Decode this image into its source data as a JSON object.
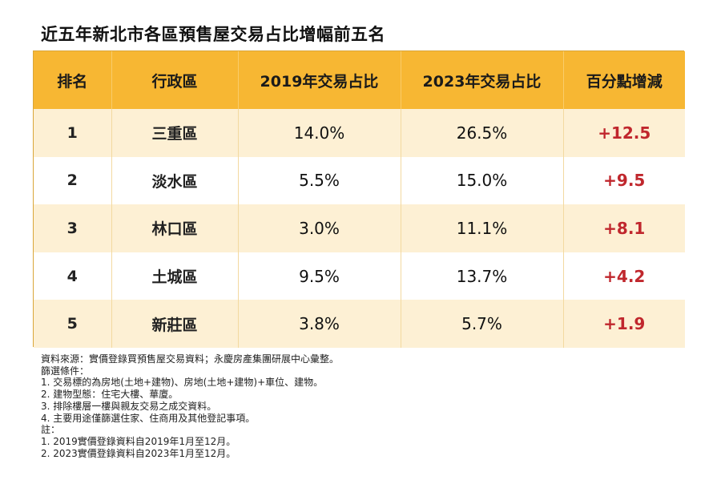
{
  "title": "近五年新北市各區預售屋交易占比增幅前五名",
  "table": {
    "headers": [
      "排名",
      "行政區",
      "2019年交易占比",
      "2023年交易占比",
      "百分點增減"
    ],
    "rows": [
      {
        "rank": "1",
        "district": "三重區",
        "y2019": "14.0%",
        "y2023": "26.5%",
        "change": "+12.5"
      },
      {
        "rank": "2",
        "district": "淡水區",
        "y2019": "5.5%",
        "y2023": "15.0%",
        "change": "+9.5"
      },
      {
        "rank": "3",
        "district": "林口區",
        "y2019": "3.0%",
        "y2023": "11.1%",
        "change": "+8.1"
      },
      {
        "rank": "4",
        "district": "土城區",
        "y2019": "9.5%",
        "y2023": "13.7%",
        "change": "+4.2"
      },
      {
        "rank": "5",
        "district": "新莊區",
        "y2019": "3.8%",
        "y2023": "5.7%",
        "change": "+1.9"
      }
    ]
  },
  "notes": [
    "資料來源：實價登錄買預售屋交易資料；永慶房產集團研展中心彙整。",
    "篩選條件：",
    "1. 交易標的為房地(土地+建物)、房地(土地+建物)+車位、建物。",
    "2. 建物型態：住宅大樓、華廈。",
    "3. 排除樓層一樓與親友交易之成交資料。",
    "4. 主要用途僅篩選住家、住商用及其他登記事項。",
    "註：",
    "1. 2019實價登錄資料自2019年1月至12月。",
    "2. 2023實價登錄資料自2023年1月至12月。"
  ],
  "colors": {
    "header_bg": "#f7b733",
    "odd_row_bg": "#fdf0d4",
    "even_row_bg": "#ffffff",
    "change_text": "#c0272d"
  }
}
